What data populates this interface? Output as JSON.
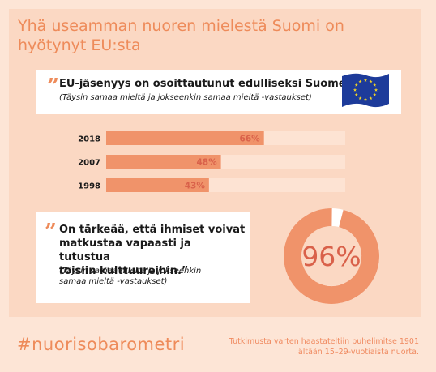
{
  "title_line1": "Yhä useamman nuoren mielestä Suomi on",
  "title_line2": "hyötynyt EU:sta",
  "quote1": {
    "mark": "”",
    "text": "EU-jäsenyys on osoittautunut edulliseksi Suomelle.”",
    "sub": "(Täysin samaa mieltä ja jokseenkin samaa mieltä -vastaukset)"
  },
  "quote2": {
    "mark": "”",
    "line1": "On tärkeää, että ihmiset voivat",
    "line2": "matkustaa vapaasti ja tutustua",
    "line3": "toisiin kulttuureihin.”",
    "sub1": "(Täysin samaa mieltä ja jokseenkin",
    "sub2": "samaa mieltä -vastaukset)"
  },
  "colors": {
    "accent": "#ee8b5a",
    "bar": "#f0936a",
    "track": "#fde3d3",
    "bar_label": "#d9614a",
    "donut_label": "#d9614a",
    "donut_track": "#ffffff",
    "flag_blue": "#1d3b9a",
    "flag_star": "#f5d623"
  },
  "flag_icon": "eu-flag-icon",
  "chart_data": [
    {
      "type": "bar",
      "orientation": "horizontal",
      "categories": [
        "2018",
        "2007",
        "1998"
      ],
      "values": [
        66,
        48,
        43
      ],
      "value_labels": [
        "66%",
        "48%",
        "43%"
      ],
      "xlim": [
        0,
        100
      ]
    },
    {
      "type": "pie",
      "style": "donut",
      "values": [
        96,
        4
      ],
      "center_label": "96%"
    }
  ],
  "footer": {
    "hashtag": "#nuorisobarometri",
    "source_line1": "Tutkimusta varten haastateltiin puhelimitse 1901",
    "source_line2": "iältään 15–29-vuotiaista nuorta."
  }
}
